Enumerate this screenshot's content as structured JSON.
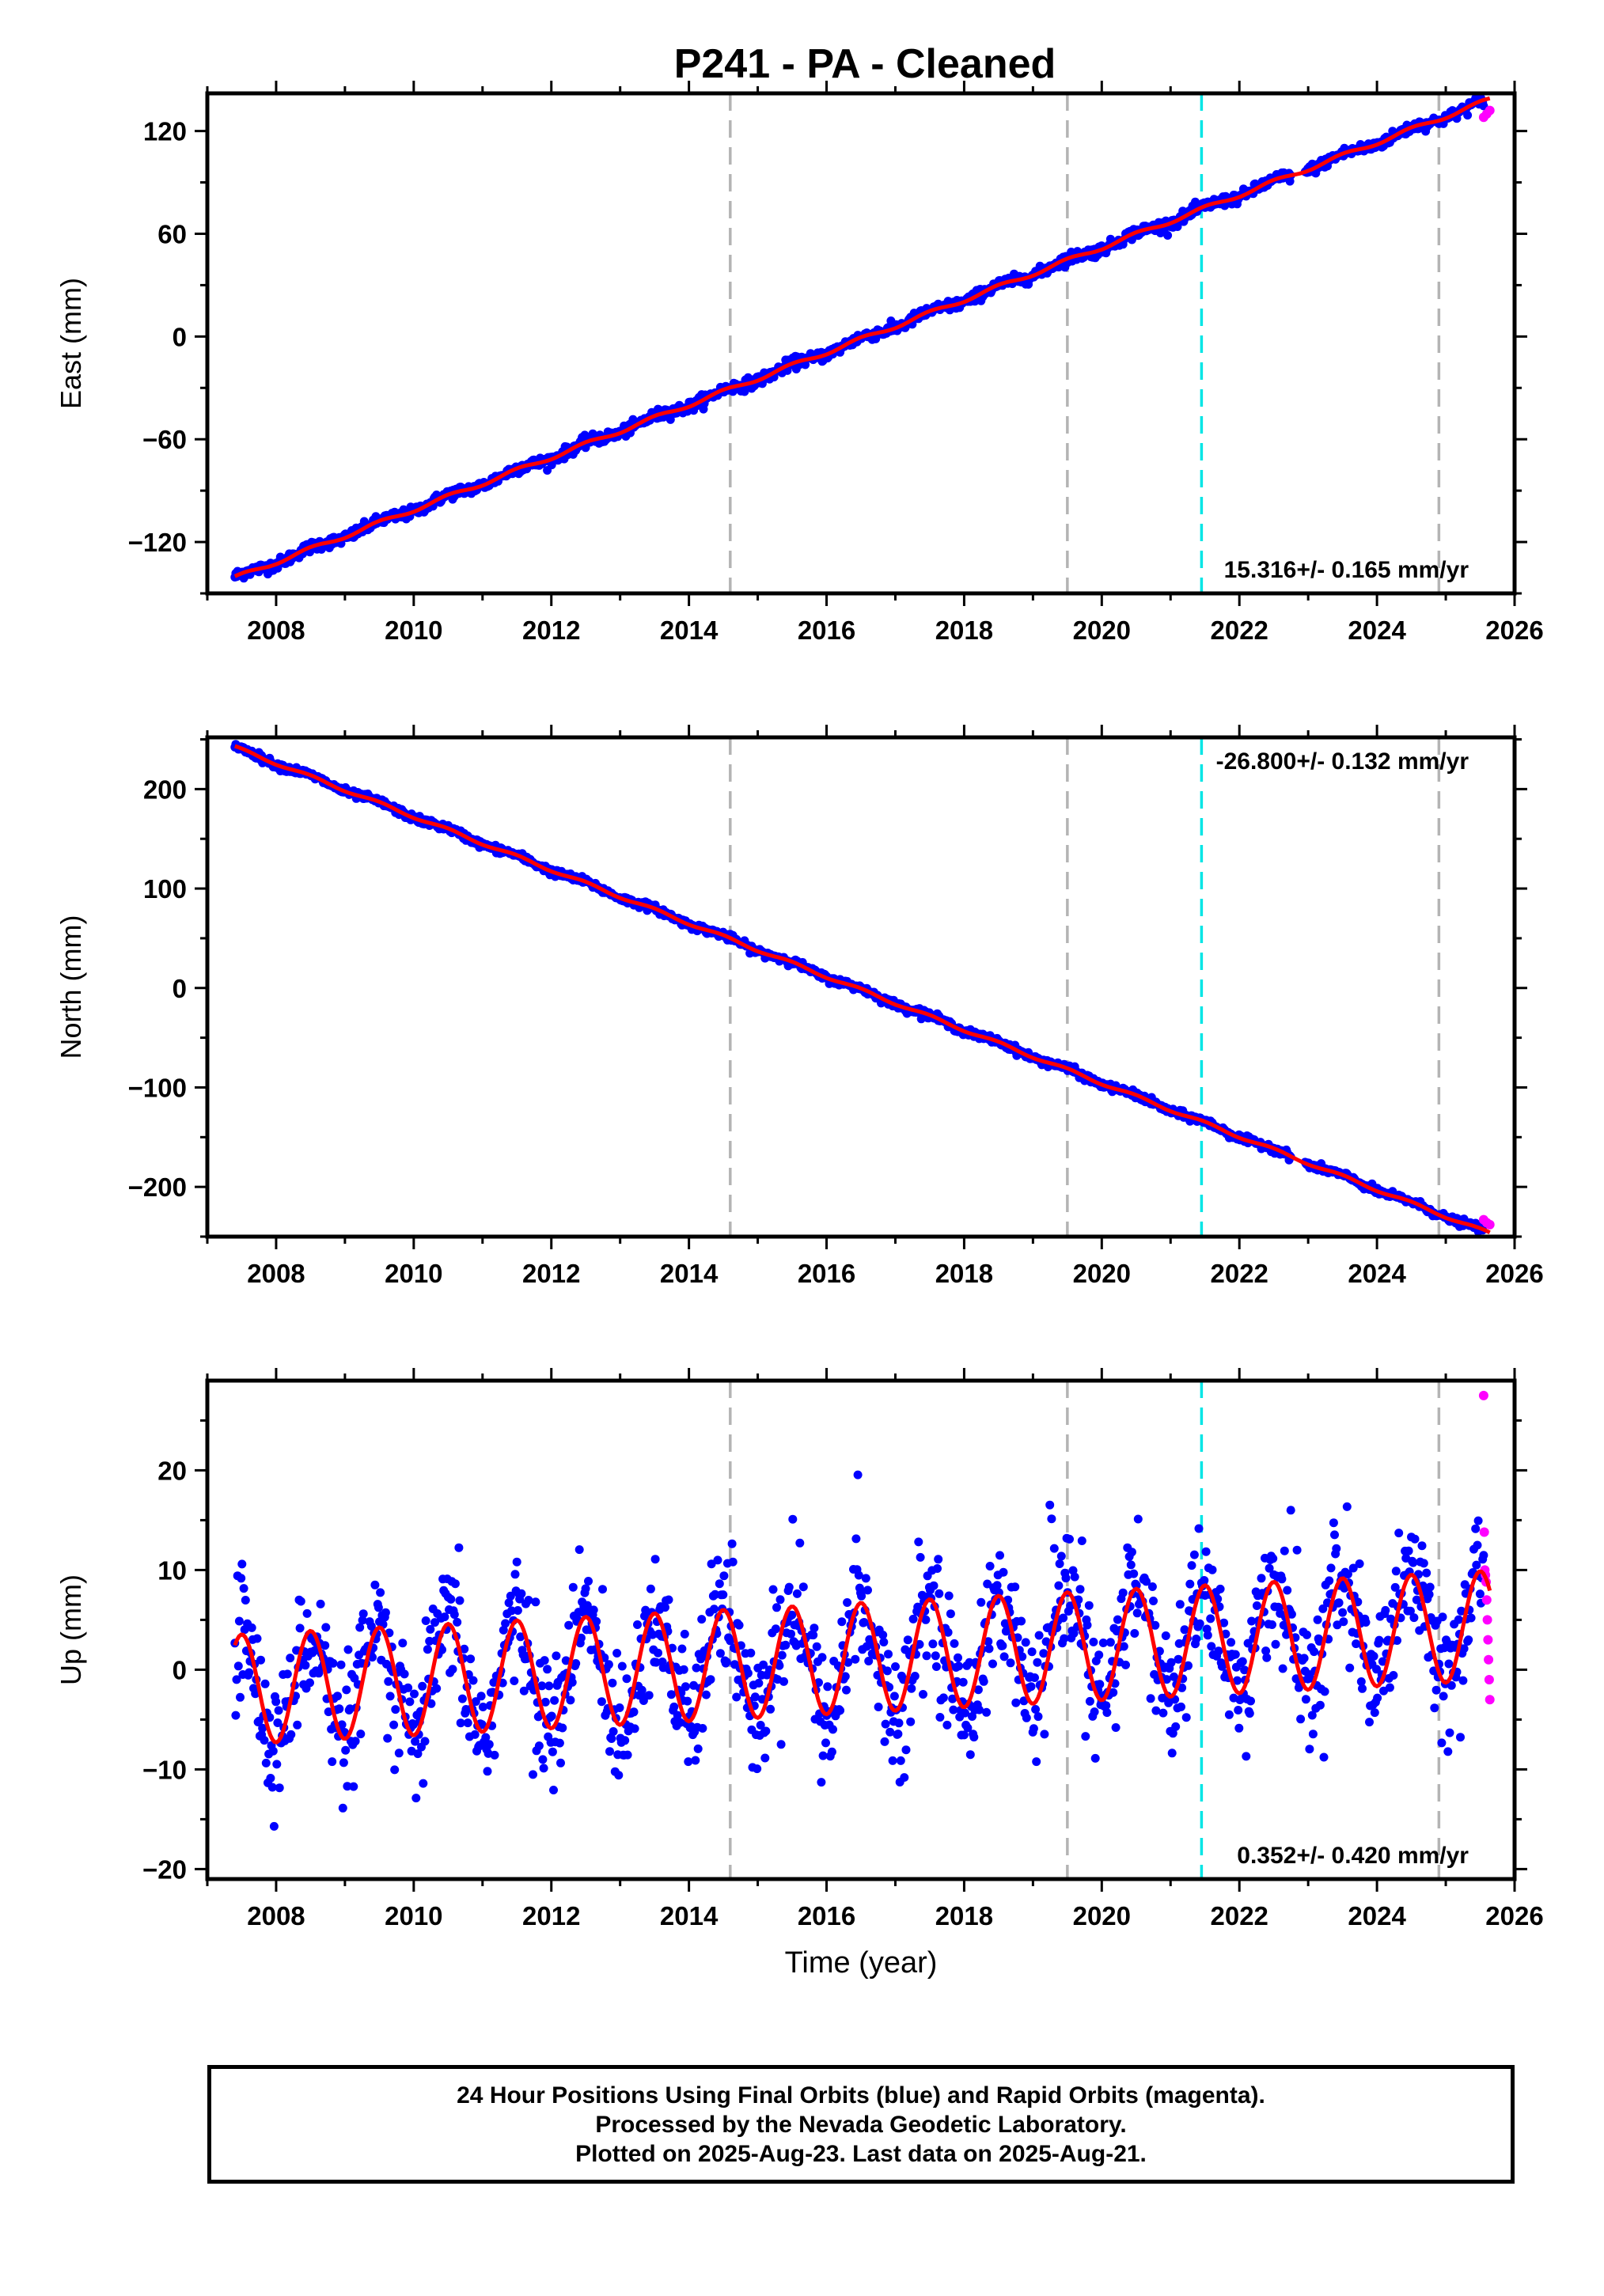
{
  "title": "P241  - PA - Cleaned",
  "colors": {
    "final": "#0000ff",
    "rapid": "#ff00ff",
    "model": "#ff0000",
    "event_gray": "#b4b4b4",
    "event_cyan": "#00e5e5"
  },
  "caption": {
    "line1": "24 Hour Positions Using Final Orbits (blue) and Rapid Orbits (magenta).",
    "line2": "Processed by the Nevada Geodetic Laboratory.",
    "line3": "Plotted on 2025-Aug-23. Last data on 2025-Aug-21."
  },
  "chart_data": [
    {
      "type": "scatter",
      "component": "east",
      "ylabel": "East (mm)",
      "xlabel": "",
      "xlim": [
        2007.0,
        2026.0
      ],
      "ylim": [
        -150,
        142
      ],
      "xticks": [
        2008,
        2010,
        2012,
        2014,
        2016,
        2018,
        2020,
        2022,
        2024,
        2026
      ],
      "yticks": [
        -120,
        -60,
        0,
        60,
        120
      ],
      "rate_label": "15.316+/- 0.165 mm/yr",
      "rate_position": "bottom-right",
      "steps": [
        {
          "year": 2014.6,
          "type": "gray"
        },
        {
          "year": 2019.5,
          "type": "gray"
        },
        {
          "year": 2021.45,
          "type": "cyan"
        },
        {
          "year": 2024.9,
          "type": "gray"
        }
      ],
      "data_start": 2007.4,
      "final_end": 2025.55,
      "rapid_end": 2025.64,
      "trend": {
        "slope": 15.316,
        "intercept": -141,
        "t0": 2007.4
      },
      "seasonal_amplitude": 2.0,
      "scatter_sigma": 1.6,
      "rapid_values": [
        128,
        130,
        132
      ]
    },
    {
      "type": "scatter",
      "component": "north",
      "ylabel": "North (mm)",
      "xlabel": "",
      "xlim": [
        2007.0,
        2026.0
      ],
      "ylim": [
        -250,
        252
      ],
      "xticks": [
        2008,
        2010,
        2012,
        2014,
        2016,
        2018,
        2020,
        2022,
        2024,
        2026
      ],
      "yticks": [
        -200,
        -100,
        0,
        100,
        200
      ],
      "rate_label": "-26.800+/- 0.132 mm/yr",
      "rate_position": "top-right",
      "steps": [
        {
          "year": 2014.6,
          "type": "gray"
        },
        {
          "year": 2019.5,
          "type": "gray"
        },
        {
          "year": 2021.45,
          "type": "cyan"
        },
        {
          "year": 2024.9,
          "type": "gray"
        }
      ],
      "data_start": 2007.4,
      "final_end": 2025.55,
      "rapid_end": 2025.64,
      "trend": {
        "slope": -26.8,
        "intercept": 242,
        "t0": 2007.4
      },
      "seasonal_amplitude": 2.5,
      "scatter_sigma": 1.8,
      "rapid_values": [
        -233,
        -236,
        -238
      ]
    },
    {
      "type": "scatter",
      "component": "up",
      "ylabel": "Up (mm)",
      "xlabel": "Time (year)",
      "xlim": [
        2007.0,
        2026.0
      ],
      "ylim": [
        -21,
        29
      ],
      "xticks": [
        2008,
        2010,
        2012,
        2014,
        2016,
        2018,
        2020,
        2022,
        2024,
        2026
      ],
      "yticks": [
        -20,
        -10,
        0,
        10,
        20
      ],
      "rate_label": "0.352+/- 0.420 mm/yr",
      "rate_position": "bottom-right",
      "steps": [
        {
          "year": 2014.6,
          "type": "gray"
        },
        {
          "year": 2019.5,
          "type": "gray"
        },
        {
          "year": 2021.45,
          "type": "cyan"
        },
        {
          "year": 2024.9,
          "type": "gray"
        }
      ],
      "data_start": 2007.4,
      "final_end": 2025.55,
      "rapid_end": 2025.64,
      "trend": {
        "slope": 0.352,
        "intercept": -2.0,
        "t0": 2007.4
      },
      "seasonal_amplitude": 5.5,
      "scatter_sigma": 3.2,
      "rapid_values": [
        27.5,
        13.8,
        10,
        9.5,
        8.8,
        7,
        5,
        3,
        1,
        -1,
        -3
      ]
    }
  ]
}
